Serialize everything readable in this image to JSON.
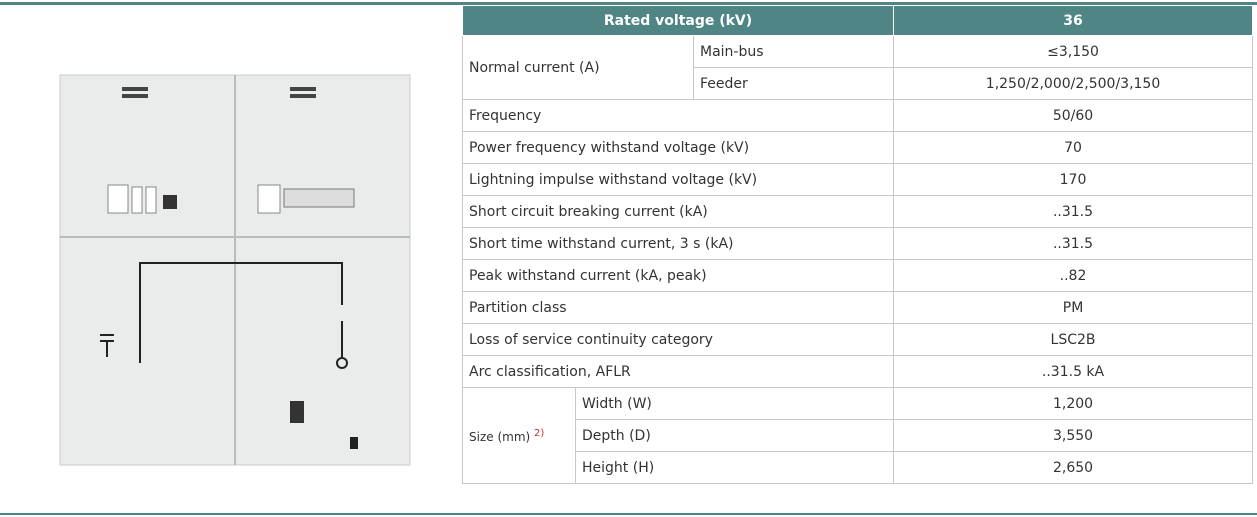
{
  "table": {
    "header": [
      "Rated voltage (kV)",
      "36"
    ],
    "normal_current": {
      "label": "Normal current (A)",
      "rows": [
        [
          "Main-bus",
          "≤3,150"
        ],
        [
          "Feeder",
          "1,250/2,000/2,500/3,150"
        ]
      ]
    },
    "rows": [
      [
        "Frequency",
        "50/60"
      ],
      [
        "Power frequency withstand voltage (kV)",
        "70"
      ],
      [
        "Lightning impulse withstand voltage (kV)",
        "170"
      ],
      [
        "Short circuit breaking current (kA)",
        "..31.5"
      ],
      [
        "Short time withstand current, 3 s (kA)",
        "..31.5"
      ],
      [
        "Peak withstand current (kA, peak)",
        "..82"
      ],
      [
        "Partition class",
        "PM"
      ],
      [
        "Loss of service continuity category",
        "LSC2B"
      ],
      [
        "Arc classification, AFLR",
        "..31.5 kA"
      ]
    ],
    "size": {
      "label": "Size (mm)",
      "note": "2)",
      "rows": [
        [
          "Width (W)",
          "1,200"
        ],
        [
          "Depth (D)",
          "3,550"
        ],
        [
          "Height (H)",
          "2,650"
        ]
      ]
    }
  }
}
